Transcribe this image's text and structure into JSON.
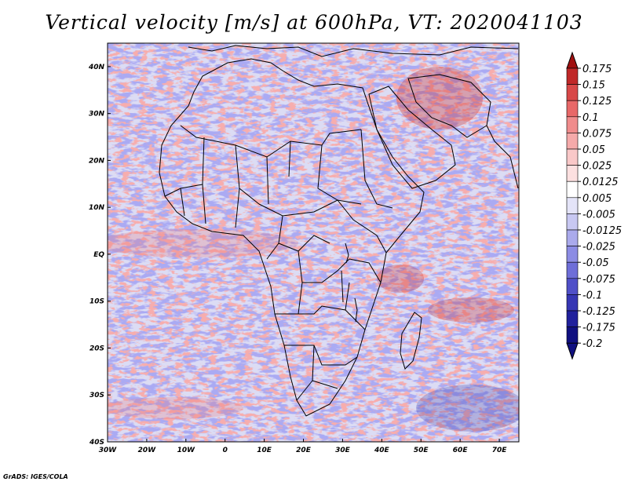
{
  "title": "Vertical velocity [m/s] at 600hPa, VT: 2020041103",
  "credit": "GrADS: IGES/COLA",
  "map": {
    "lon_range": [
      -30,
      75
    ],
    "lat_range": [
      -40,
      45
    ],
    "lon_ticks": [
      {
        "value": -30,
        "label": "30W"
      },
      {
        "value": -20,
        "label": "20W"
      },
      {
        "value": -10,
        "label": "10W"
      },
      {
        "value": 0,
        "label": "0"
      },
      {
        "value": 10,
        "label": "10E"
      },
      {
        "value": 20,
        "label": "20E"
      },
      {
        "value": 30,
        "label": "30E"
      },
      {
        "value": 40,
        "label": "40E"
      },
      {
        "value": 50,
        "label": "50E"
      },
      {
        "value": 60,
        "label": "60E"
      },
      {
        "value": 70,
        "label": "70E"
      }
    ],
    "lat_ticks": [
      {
        "value": 40,
        "label": "40N"
      },
      {
        "value": 30,
        "label": "30N"
      },
      {
        "value": 20,
        "label": "20N"
      },
      {
        "value": 10,
        "label": "10N"
      },
      {
        "value": 0,
        "label": "EQ"
      },
      {
        "value": -10,
        "label": "10S"
      },
      {
        "value": -20,
        "label": "20S"
      },
      {
        "value": -30,
        "label": "30S"
      },
      {
        "value": -40,
        "label": "40S"
      }
    ]
  },
  "colorbar": {
    "levels": [
      {
        "label": "0.175",
        "color": "#a01010"
      },
      {
        "label": "0.15",
        "color": "#c02828"
      },
      {
        "label": "0.125",
        "color": "#d84848"
      },
      {
        "label": "0.1",
        "color": "#e86868"
      },
      {
        "label": "0.075",
        "color": "#f08c8c"
      },
      {
        "label": "0.05",
        "color": "#f5aaaa"
      },
      {
        "label": "0.025",
        "color": "#f9c8c8"
      },
      {
        "label": "0.0125",
        "color": "#fce0e0"
      },
      {
        "label": "0.005",
        "color": "#ffffff"
      },
      {
        "label": "-0.005",
        "color": "#e4e4f8"
      },
      {
        "label": "-0.0125",
        "color": "#c8c8f2"
      },
      {
        "label": "-0.025",
        "color": "#aaaaec"
      },
      {
        "label": "-0.05",
        "color": "#8c8ce4"
      },
      {
        "label": "-0.075",
        "color": "#6e6ed8"
      },
      {
        "label": "-0.1",
        "color": "#5050c8"
      },
      {
        "label": "-0.125",
        "color": "#3636b4"
      },
      {
        "label": "-0.175",
        "color": "#20209c"
      },
      {
        "label": "-0.2",
        "color": "#101080"
      }
    ],
    "top_color": "#a01010",
    "bottom_color": "#101080"
  }
}
